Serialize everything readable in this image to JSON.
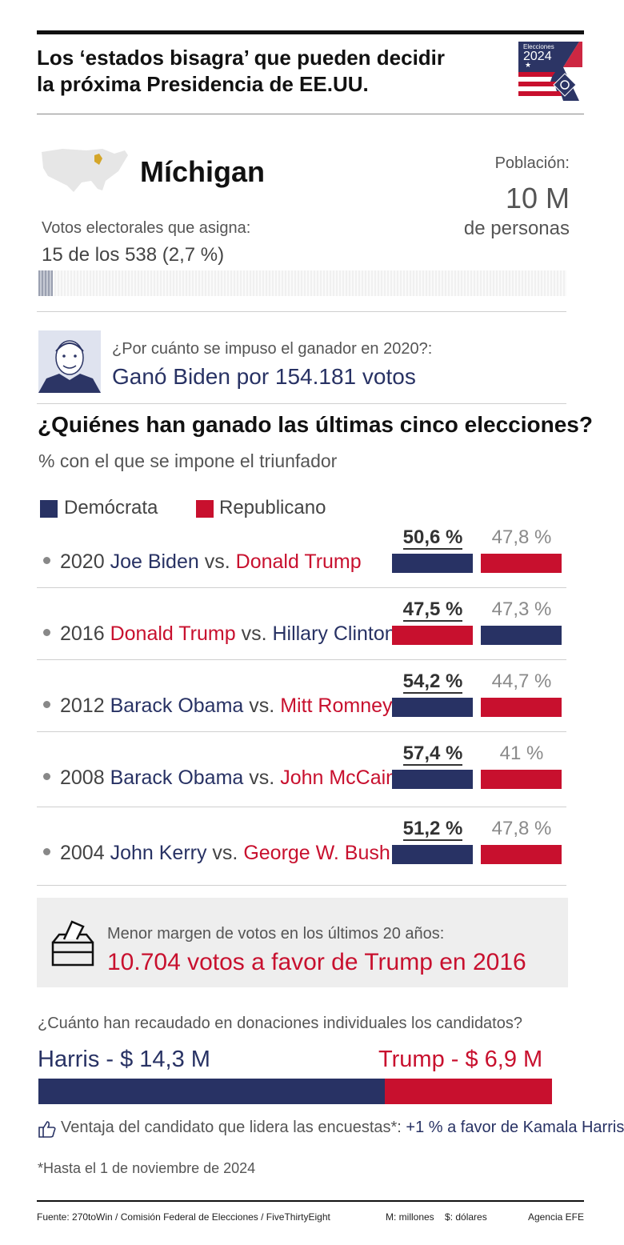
{
  "header": {
    "title_line1": "Los ‘estados bisagra’ que pueden decidir",
    "title_line2": "la próxima Presidencia de EE.UU.",
    "logo_text_top": "Elecciones",
    "logo_text_year": "2024"
  },
  "state": {
    "name": "Míchigan",
    "population_label": "Población:",
    "population_value": "10 M",
    "population_unit": "de personas",
    "electoral_label": "Votos electorales que asigna:",
    "electoral_value": "15 de los 538 (2,7 %)",
    "electoral_fraction": 0.027
  },
  "result2020": {
    "question": "¿Por cuánto se impuso el ganador en 2020?:",
    "answer": "Ganó Biden por 154.181 votos"
  },
  "history": {
    "title": "¿Quiénes han ganado las últimas cinco elecciones?",
    "subtitle": "% con el que se impone el triunfador",
    "legend_dem": "Demócrata",
    "legend_rep": "Republicano"
  },
  "colors": {
    "dem": "#283264",
    "rep": "#c8102e",
    "text": "#333333",
    "muted": "#8a8a8a"
  },
  "chart_data": {
    "type": "bar",
    "title": "¿Quiénes han ganado las últimas cinco elecciones?",
    "subtitle": "% con el que se impone el triunfador",
    "rows": [
      {
        "year": "2020",
        "winner": "Joe Biden",
        "winner_party": "dem",
        "vs": "vs.",
        "loser": "Donald Trump",
        "loser_party": "rep",
        "winner_pct": 50.6,
        "loser_pct": 47.8,
        "winner_label": "50,6 %",
        "loser_label": "47,8 %"
      },
      {
        "year": "2016",
        "winner": "Donald Trump",
        "winner_party": "rep",
        "vs": "vs.",
        "loser": "Hillary Clinton",
        "loser_party": "dem",
        "winner_pct": 47.5,
        "loser_pct": 47.3,
        "winner_label": "47,5 %",
        "loser_label": "47,3 %"
      },
      {
        "year": "2012",
        "winner": "Barack Obama",
        "winner_party": "dem",
        "vs": "vs.",
        "loser": "Mitt Romney",
        "loser_party": "rep",
        "winner_pct": 54.2,
        "loser_pct": 44.7,
        "winner_label": "54,2 %",
        "loser_label": "44,7 %"
      },
      {
        "year": "2008",
        "winner": "Barack Obama",
        "winner_party": "dem",
        "vs": "vs.",
        "loser": "John McCain",
        "loser_party": "rep",
        "winner_pct": 57.4,
        "loser_pct": 41,
        "winner_label": "57,4 %",
        "loser_label": "41 %"
      },
      {
        "year": "2004",
        "winner": "John Kerry",
        "winner_party": "dem",
        "vs": "vs.",
        "loser": "George W. Bush",
        "loser_party": "rep",
        "winner_pct": 51.2,
        "loser_pct": 47.8,
        "winner_label": "51,2 %",
        "loser_label": "47,8 %"
      }
    ]
  },
  "margin": {
    "label": "Menor margen de votos en los últimos 20 años:",
    "value": "10.704 votos a favor de Trump en 2016"
  },
  "donations": {
    "question": "¿Cuánto han recaudado en donaciones individuales los candidatos?",
    "harris_label": "Harris - $ 14,3 M",
    "trump_label": "Trump - $ 6,9 M",
    "harris_value": 14.3,
    "trump_value": 6.9
  },
  "polls": {
    "text": "Ventaja del candidato que lidera las encuestas*:",
    "value": "+1 % a favor de Kamala Harris",
    "footnote": "*Hasta el 1 de noviembre de 2024"
  },
  "footer": {
    "source": "Fuente: 270toWin / Comisión Federal de Elecciones / FiveThirtyEight",
    "units": "M: millones    $: dólares",
    "agency": "Agencia EFE"
  }
}
